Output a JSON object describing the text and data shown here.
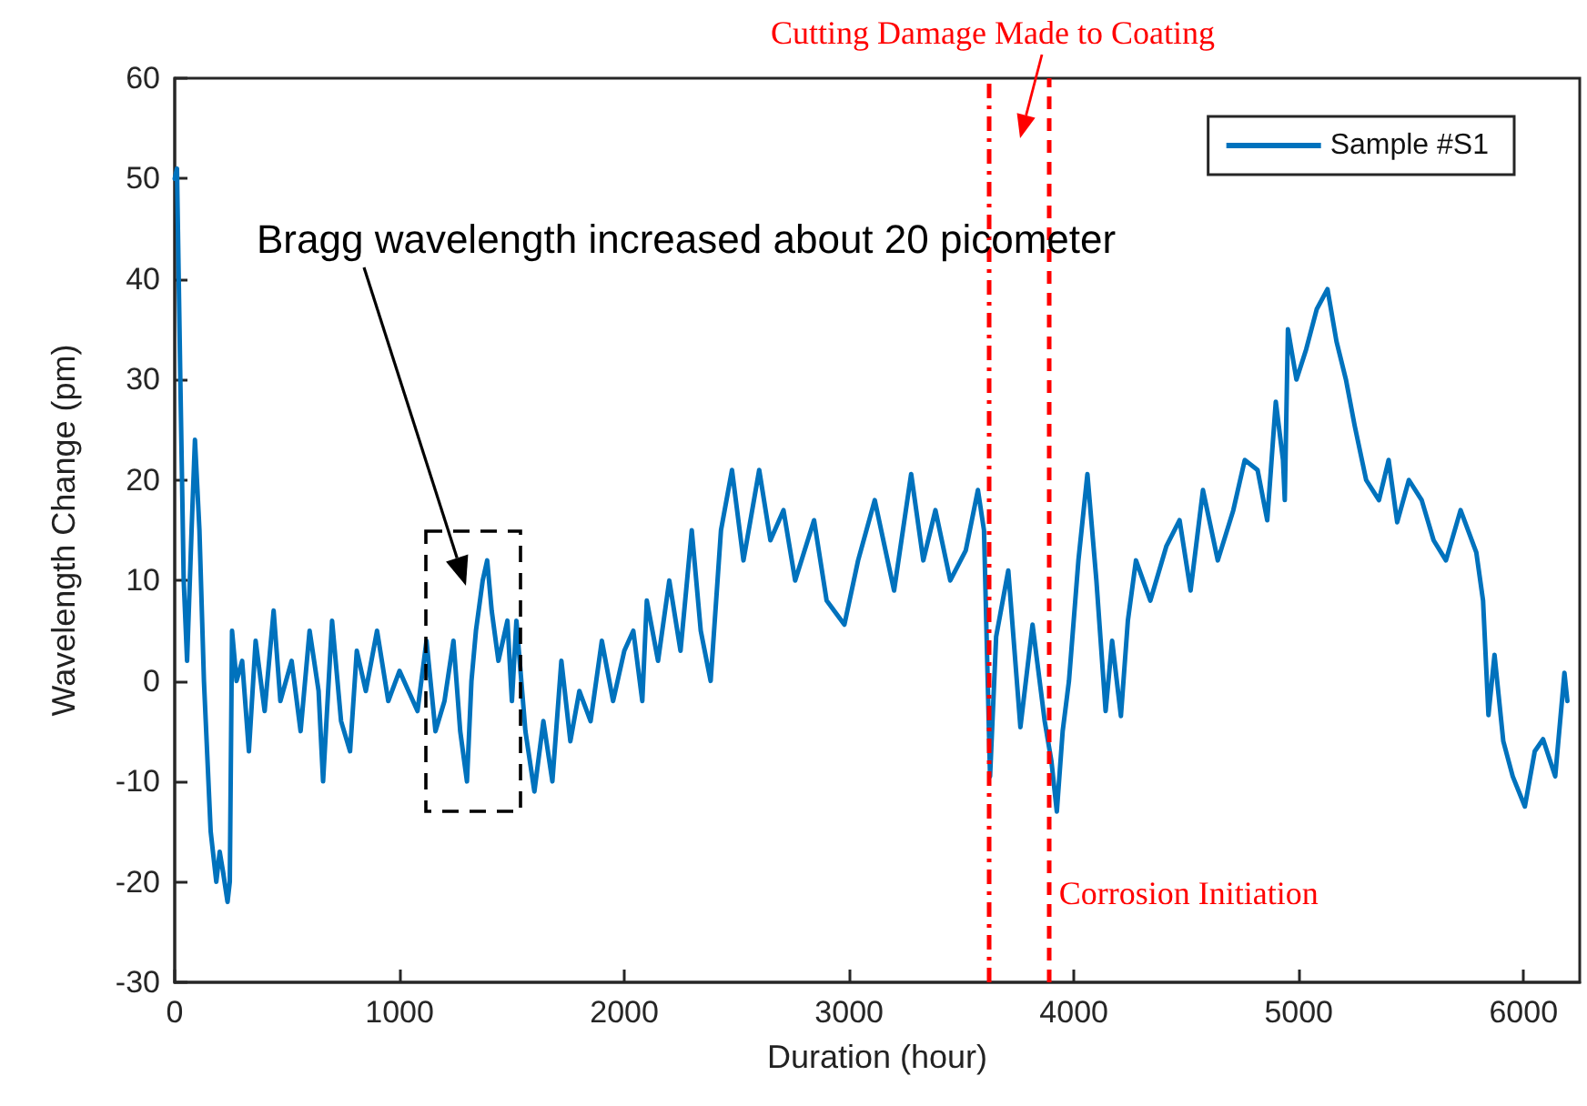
{
  "chart_data": {
    "type": "line",
    "xlabel": "Duration (hour)",
    "ylabel": "Wavelength Change (pm)",
    "x": [
      0,
      10,
      25,
      40,
      55,
      75,
      90,
      110,
      130,
      160,
      185,
      200,
      215,
      235,
      245,
      255,
      275,
      300,
      330,
      360,
      400,
      440,
      470,
      520,
      560,
      600,
      640,
      660,
      700,
      740,
      780,
      810,
      850,
      900,
      950,
      1000,
      1040,
      1080,
      1120,
      1160,
      1200,
      1240,
      1270,
      1300,
      1320,
      1340,
      1370,
      1390,
      1410,
      1440,
      1480,
      1500,
      1520,
      1560,
      1600,
      1640,
      1680,
      1720,
      1760,
      1800,
      1850,
      1900,
      1950,
      2000,
      2040,
      2080,
      2100,
      2150,
      2200,
      2250,
      2300,
      2340,
      2384,
      2430,
      2479,
      2530,
      2600,
      2650,
      2708,
      2760,
      2844,
      2900,
      2979,
      3040,
      3114,
      3200,
      3276,
      3330,
      3384,
      3450,
      3519,
      3573,
      3600,
      3627,
      3654,
      3708,
      3762,
      3816,
      3870,
      3900,
      3924,
      3950,
      3978,
      4020,
      4060,
      4100,
      4141,
      4170,
      4209,
      4240,
      4276,
      4340,
      4411,
      4470,
      4519,
      4574,
      4640,
      4709,
      4760,
      4817,
      4860,
      4898,
      4930,
      4938,
      4952,
      4990,
      5033,
      5080,
      5128,
      5168,
      5210,
      5249,
      5300,
      5357,
      5400,
      5438,
      5490,
      5547,
      5600,
      5655,
      5720,
      5790,
      5820,
      5844,
      5871,
      5910,
      5952,
      6006,
      6050,
      6087,
      6141,
      6182,
      6195
    ],
    "series": [
      {
        "name": "Sample #S1",
        "color": "#0072bd",
        "values": [
          50,
          51,
          30,
          10,
          2,
          15,
          24,
          15,
          0,
          -15,
          -20,
          -17,
          -19,
          -22,
          -20,
          5,
          0,
          2,
          -7,
          4,
          -3,
          7,
          -2,
          2,
          -5,
          5,
          -1,
          -10,
          6,
          -4,
          -7,
          3,
          -1,
          5,
          -2,
          1,
          -1,
          -3,
          4,
          -5,
          -2,
          4,
          -5,
          -10,
          0,
          5,
          10,
          12,
          7,
          2,
          6,
          -2,
          6,
          -5,
          -11,
          -4,
          -10,
          2,
          -6,
          -1,
          -4,
          4,
          -2,
          3,
          5,
          -2,
          8,
          2,
          10,
          3,
          15,
          5,
          0,
          15,
          21,
          12,
          21,
          14,
          17,
          10,
          16,
          8,
          5.6,
          12,
          18,
          9,
          20.6,
          12,
          17,
          10,
          13,
          19,
          15,
          -9.5,
          4.4,
          11,
          -4.6,
          5.6,
          -4,
          -8,
          -13,
          -5,
          0,
          12,
          20.6,
          10,
          -3,
          4,
          -3.5,
          6,
          12,
          8,
          13.4,
          16,
          9,
          19,
          12,
          17,
          22,
          21,
          16,
          27.8,
          22,
          18,
          35,
          30,
          33,
          37,
          39,
          33.8,
          30,
          25.4,
          20,
          18,
          22,
          15.8,
          20,
          18,
          14,
          12,
          17,
          12.8,
          8,
          -3.4,
          2.6,
          -6,
          -9.5,
          -12.5,
          -7,
          -5.8,
          -9.5,
          0.8,
          -2
        ]
      }
    ],
    "xlim": [
      0,
      6250
    ],
    "xticks": [
      0,
      1000,
      2000,
      3000,
      4000,
      5000,
      6000
    ],
    "ylim": [
      -30,
      60
    ],
    "yticks": [
      -30,
      -20,
      -10,
      0,
      10,
      20,
      30,
      40,
      50,
      60
    ],
    "grid": false,
    "legend": "top right",
    "marker": "none",
    "line_style": "solid",
    "ref_lines": [
      {
        "axis": "x",
        "value": 3620,
        "label": "Cutting Damage Made to Coating",
        "color": "#ff0000",
        "line_style": "dashdot"
      },
      {
        "axis": "x",
        "value": 3885,
        "label": "Corrosion Initiation",
        "color": "#ff0000",
        "line_style": "dashed"
      }
    ],
    "annotations": [
      "Bragg wavelength increased about 20 picometer"
    ]
  }
}
